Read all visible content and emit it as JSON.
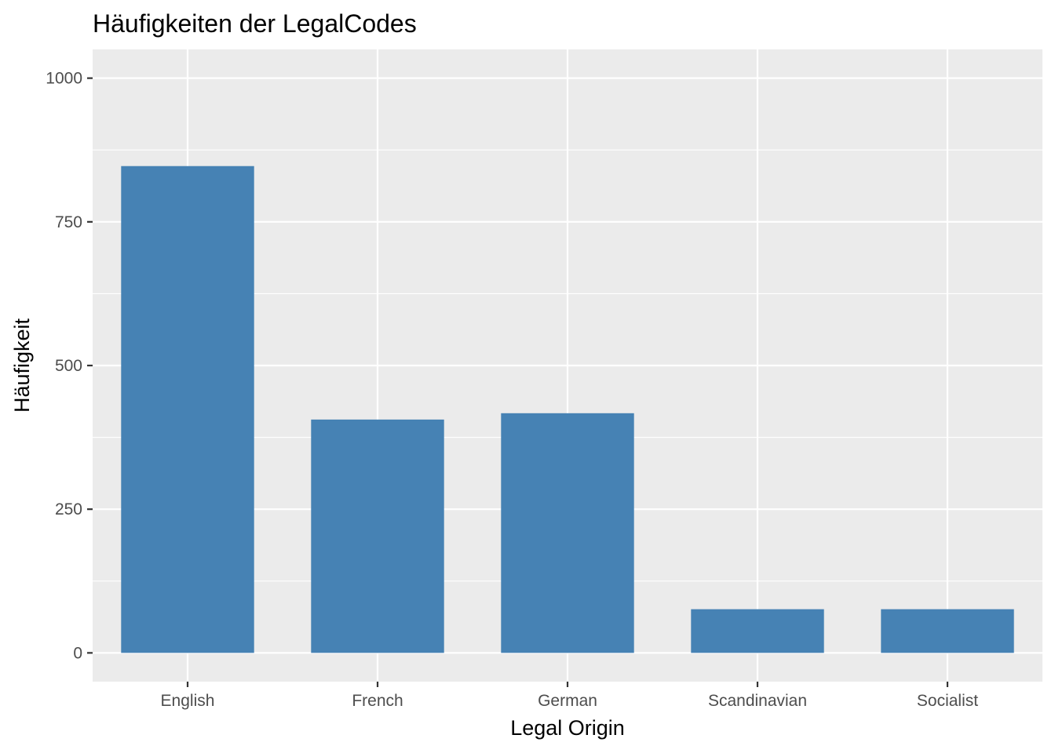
{
  "chart_data": {
    "type": "bar",
    "title": "Häufigkeiten der LegalCodes",
    "xlabel": "Legal Origin",
    "ylabel": "Häufigkeit",
    "categories": [
      "English",
      "French",
      "German",
      "Scandinavian",
      "Socialist"
    ],
    "values": [
      847,
      406,
      417,
      76,
      76
    ],
    "ylim": [
      -50,
      1050
    ],
    "yticks": [
      0,
      250,
      500,
      750,
      1000
    ],
    "grid": true,
    "legend": "none",
    "colors": {
      "bar": "#4682B4",
      "panel_background": "#EBEBEB",
      "grid": "#FFFFFF",
      "tick_text": "#4D4D4D",
      "axis_ticks": "#333333"
    }
  }
}
